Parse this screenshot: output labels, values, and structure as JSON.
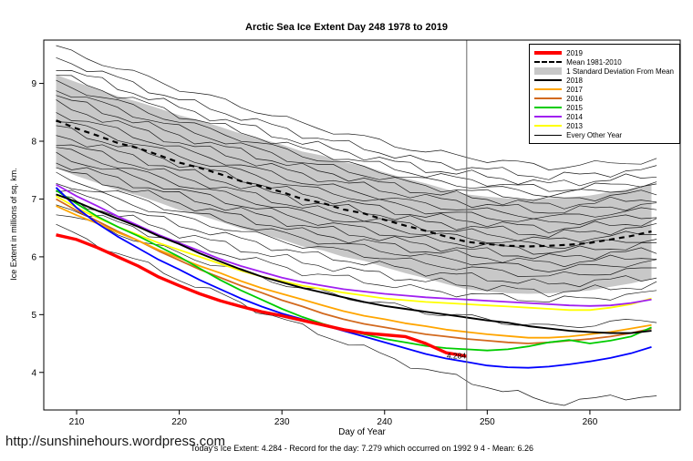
{
  "page": {
    "title": "Arctic Sea Ice Extent Day 248 1978 to 2019",
    "footer_url": "http://sunshinehours.wordpress.com",
    "caption": "Today's Ice Extent: 4.284  - Record for the day: 7.279 which occurred on 1992 9 4  - Mean: 6.26"
  },
  "chart_data": {
    "type": "line",
    "title": "Arctic Sea Ice Extent Day 248 1978 to 2019",
    "xlabel": "Day of Year",
    "ylabel": "Ice Extent in millions of sq. km.",
    "xticks": [
      210,
      220,
      230,
      240,
      250,
      260
    ],
    "yticks": [
      4,
      5,
      6,
      7,
      8,
      9
    ],
    "xlim": [
      206.8,
      268.8
    ],
    "ylim": [
      3.35,
      9.75
    ],
    "grid": false,
    "legend_position": "top-right",
    "vline": {
      "x": 248,
      "color": "#666666"
    },
    "annotation": {
      "text": "4.284",
      "x": 248,
      "y": 4.284,
      "color": "#ff0000"
    },
    "legend": [
      {
        "label": "2019",
        "color": "#ff0000",
        "style": "thick"
      },
      {
        "label": "Mean 1981-2010",
        "color": "#000000",
        "style": "dashed"
      },
      {
        "label": "1 Standard Deviation From Mean",
        "color": "#c8c8c8",
        "style": "band"
      },
      {
        "label": "2018",
        "color": "#000000",
        "style": "medium"
      },
      {
        "label": "2017",
        "color": "#ffa500",
        "style": "medium"
      },
      {
        "label": "2016",
        "color": "#d2691e",
        "style": "medium"
      },
      {
        "label": "2015",
        "color": "#00cc00",
        "style": "medium"
      },
      {
        "label": "2014",
        "color": "#a020f0",
        "style": "medium"
      },
      {
        "label": "2013",
        "color": "#ffff00",
        "style": "medium"
      },
      {
        "label": "Every Other Year",
        "color": "#000000",
        "style": "thin"
      }
    ],
    "x": [
      208,
      210,
      212,
      214,
      216,
      218,
      220,
      222,
      224,
      226,
      228,
      230,
      232,
      234,
      236,
      238,
      240,
      242,
      244,
      246,
      248,
      250,
      252,
      254,
      256,
      258,
      260,
      262,
      264,
      266
    ],
    "mean": {
      "name": "Mean 1981-2010",
      "color": "#000000",
      "width": 2.2,
      "dash": "6,5",
      "values": [
        8.36,
        8.22,
        8.1,
        7.97,
        7.88,
        7.76,
        7.63,
        7.54,
        7.43,
        7.31,
        7.22,
        7.12,
        7.0,
        6.93,
        6.82,
        6.75,
        6.64,
        6.54,
        6.45,
        6.35,
        6.26,
        6.22,
        6.19,
        6.18,
        6.19,
        6.21,
        6.24,
        6.3,
        6.36,
        6.44
      ]
    },
    "band": {
      "name": "1 Standard Deviation From Mean",
      "color": "#c8c8c8",
      "upper": [
        9.15,
        9.02,
        8.9,
        8.78,
        8.68,
        8.57,
        8.45,
        8.36,
        8.25,
        8.13,
        8.04,
        7.94,
        7.82,
        7.75,
        7.64,
        7.57,
        7.46,
        7.36,
        7.27,
        7.17,
        7.08,
        7.04,
        7.01,
        7.0,
        7.01,
        7.03,
        7.06,
        7.12,
        7.18,
        7.26
      ],
      "lower": [
        7.54,
        7.4,
        7.28,
        7.15,
        7.06,
        6.94,
        6.81,
        6.72,
        6.61,
        6.49,
        6.4,
        6.3,
        6.18,
        6.11,
        6.0,
        5.93,
        5.82,
        5.72,
        5.63,
        5.53,
        5.44,
        5.4,
        5.37,
        5.36,
        5.37,
        5.39,
        5.42,
        5.48,
        5.54,
        5.62
      ]
    },
    "series": [
      {
        "name": "2013",
        "color": "#ffff00",
        "width": 1.8,
        "values": [
          7.05,
          6.85,
          6.68,
          6.52,
          6.38,
          6.24,
          6.12,
          6.0,
          5.88,
          5.76,
          5.66,
          5.58,
          5.5,
          5.44,
          5.38,
          5.33,
          5.28,
          5.25,
          5.22,
          5.2,
          5.18,
          5.16,
          5.14,
          5.12,
          5.1,
          5.08,
          5.08,
          5.12,
          5.18,
          5.28
        ]
      },
      {
        "name": "2014",
        "color": "#a020f0",
        "width": 1.8,
        "values": [
          7.25,
          7.05,
          6.88,
          6.7,
          6.54,
          6.38,
          6.24,
          6.1,
          5.96,
          5.84,
          5.74,
          5.64,
          5.56,
          5.5,
          5.44,
          5.4,
          5.36,
          5.33,
          5.3,
          5.28,
          5.26,
          5.24,
          5.22,
          5.2,
          5.18,
          5.16,
          5.15,
          5.16,
          5.2,
          5.26
        ]
      },
      {
        "name": "2016",
        "color": "#d2691e",
        "width": 1.8,
        "values": [
          7.0,
          6.8,
          6.62,
          6.44,
          6.28,
          6.1,
          5.94,
          5.78,
          5.64,
          5.5,
          5.38,
          5.25,
          5.14,
          5.02,
          4.92,
          4.84,
          4.78,
          4.72,
          4.66,
          4.62,
          4.58,
          4.55,
          4.52,
          4.5,
          4.52,
          4.55,
          4.58,
          4.62,
          4.68,
          4.76
        ]
      },
      {
        "name": "2017",
        "color": "#ffa500",
        "width": 1.8,
        "values": [
          6.88,
          6.72,
          6.58,
          6.42,
          6.28,
          6.12,
          5.98,
          5.84,
          5.72,
          5.58,
          5.46,
          5.36,
          5.26,
          5.16,
          5.06,
          4.98,
          4.92,
          4.85,
          4.8,
          4.74,
          4.7,
          4.66,
          4.63,
          4.6,
          4.6,
          4.62,
          4.66,
          4.7,
          4.76,
          4.82
        ]
      },
      {
        "name": "2015",
        "color": "#00cc00",
        "width": 1.8,
        "values": [
          7.15,
          6.92,
          6.7,
          6.52,
          6.36,
          6.18,
          6.0,
          5.8,
          5.6,
          5.42,
          5.26,
          5.1,
          4.96,
          4.84,
          4.74,
          4.66,
          4.58,
          4.52,
          4.46,
          4.42,
          4.4,
          4.38,
          4.4,
          4.45,
          4.52,
          4.56,
          4.5,
          4.55,
          4.62,
          4.78
        ]
      },
      {
        "name": "unlabeled-blue-year",
        "color": "#0000ff",
        "width": 1.8,
        "values": [
          7.2,
          6.85,
          6.58,
          6.35,
          6.15,
          5.95,
          5.78,
          5.6,
          5.44,
          5.28,
          5.14,
          5.02,
          4.92,
          4.82,
          4.72,
          4.62,
          4.52,
          4.42,
          4.32,
          4.24,
          4.18,
          4.12,
          4.09,
          4.08,
          4.1,
          4.14,
          4.19,
          4.25,
          4.33,
          4.44
        ]
      },
      {
        "name": "2018",
        "color": "#000000",
        "width": 1.9,
        "values": [
          7.08,
          6.95,
          6.8,
          6.66,
          6.52,
          6.36,
          6.22,
          6.06,
          5.92,
          5.78,
          5.66,
          5.56,
          5.46,
          5.38,
          5.3,
          5.22,
          5.15,
          5.1,
          5.05,
          5.0,
          4.95,
          4.9,
          4.86,
          4.8,
          4.76,
          4.72,
          4.7,
          4.68,
          4.68,
          4.72
        ]
      },
      {
        "name": "2019",
        "color": "#ff0000",
        "width": 3.4,
        "values": [
          6.38,
          6.3,
          6.16,
          6.0,
          5.84,
          5.65,
          5.5,
          5.36,
          5.24,
          5.14,
          5.05,
          4.98,
          4.9,
          4.82,
          4.74,
          4.68,
          4.65,
          4.62,
          4.5,
          4.34,
          4.28
        ]
      }
    ],
    "background": {
      "name": "Every Other Year",
      "color": "#1a1a1a",
      "width": 0.7,
      "anchor_days": [
        208,
        220,
        232,
        244,
        256,
        267
      ],
      "lines": [
        [
          9.62,
          8.92,
          8.3,
          7.82,
          7.55,
          7.68
        ],
        [
          9.45,
          8.72,
          8.12,
          7.64,
          7.38,
          7.52
        ],
        [
          9.3,
          8.58,
          7.98,
          7.52,
          7.26,
          7.4
        ],
        [
          9.15,
          8.46,
          7.86,
          7.42,
          7.16,
          7.3
        ],
        [
          9.02,
          8.34,
          7.76,
          7.32,
          7.08,
          7.22
        ],
        [
          8.9,
          8.22,
          7.64,
          7.22,
          6.98,
          7.12
        ],
        [
          8.78,
          8.1,
          7.54,
          7.12,
          6.88,
          7.02
        ],
        [
          8.64,
          7.98,
          7.42,
          7.02,
          6.78,
          6.92
        ],
        [
          8.5,
          7.86,
          7.3,
          6.9,
          6.68,
          6.82
        ],
        [
          8.38,
          7.74,
          7.2,
          6.8,
          6.58,
          6.72
        ],
        [
          8.25,
          7.62,
          7.08,
          6.7,
          6.48,
          6.62
        ],
        [
          8.12,
          7.5,
          6.97,
          6.6,
          6.38,
          6.52
        ],
        [
          8.0,
          7.38,
          6.86,
          6.5,
          6.28,
          6.42
        ],
        [
          7.88,
          7.27,
          6.76,
          6.4,
          6.18,
          6.32
        ],
        [
          7.76,
          7.16,
          6.65,
          6.3,
          6.08,
          6.22
        ],
        [
          7.64,
          7.05,
          6.54,
          6.2,
          5.98,
          6.12
        ],
        [
          7.52,
          6.93,
          6.43,
          6.1,
          5.88,
          6.02
        ],
        [
          7.4,
          6.8,
          6.32,
          6.0,
          5.78,
          5.92
        ],
        [
          7.3,
          6.68,
          6.2,
          5.88,
          5.66,
          5.8
        ],
        [
          7.18,
          6.55,
          6.06,
          5.74,
          5.52,
          5.66
        ],
        [
          7.05,
          6.4,
          5.9,
          5.58,
          5.38,
          5.52
        ],
        [
          6.92,
          6.25,
          5.74,
          5.42,
          5.24,
          5.38
        ],
        [
          6.78,
          6.05,
          5.45,
          5.05,
          4.78,
          4.92
        ],
        [
          6.52,
          5.62,
          4.78,
          4.05,
          3.48,
          3.62
        ]
      ]
    }
  }
}
